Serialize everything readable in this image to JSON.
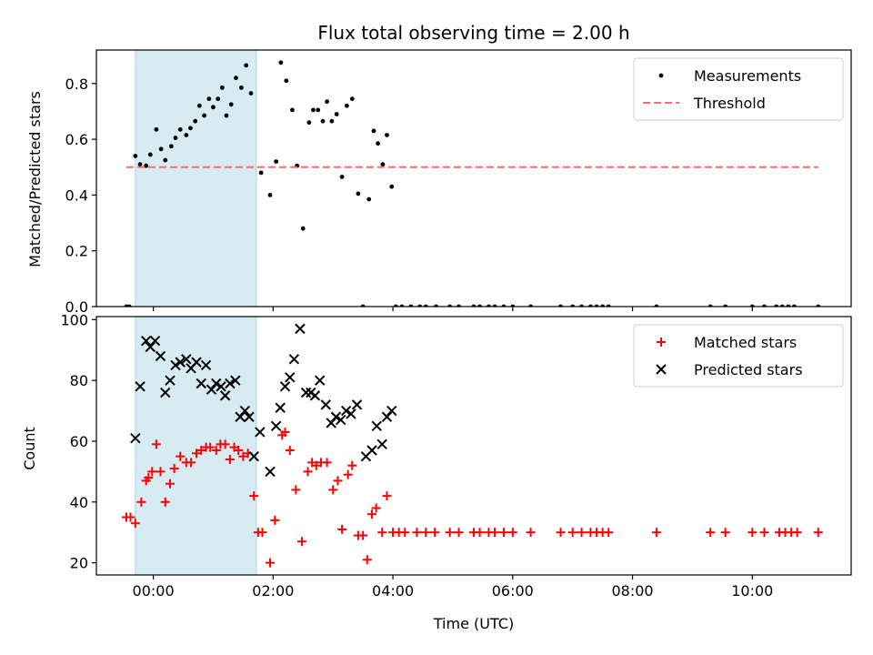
{
  "chart_data": {
    "type": "scatter",
    "title": "Flux total observing time = 2.00 h",
    "xlabel": "Time (UTC)",
    "x_unit": "hours since 00:00 UTC",
    "xlim": [
      -0.95,
      11.65
    ],
    "x_ticks": [
      0,
      2,
      4,
      6,
      8,
      10
    ],
    "x_tick_labels": [
      "00:00",
      "02:00",
      "04:00",
      "06:00",
      "08:00",
      "10:00"
    ],
    "highlight_span": {
      "x_start": -0.3,
      "x_end": 1.72,
      "color": "#add8e6"
    },
    "colors": {
      "measurements": "#000000",
      "threshold": "#ff6b6b",
      "matched": "#ff0000",
      "predicted": "#000000",
      "span": "#add8e6"
    },
    "panels": [
      {
        "ylabel": "Matched/Predicted stars",
        "ylim": [
          0,
          0.92
        ],
        "y_ticks": [
          0.0,
          0.2,
          0.4,
          0.6,
          0.8
        ],
        "y_tick_labels": [
          "0.0",
          "0.2",
          "0.4",
          "0.6",
          "0.8"
        ],
        "legend_position": "top-right",
        "series": [
          {
            "name": "Measurements",
            "kind": "scatter",
            "marker": "dot",
            "points": [
              [
                -0.45,
                0
              ],
              [
                -0.4,
                0
              ],
              [
                -0.3,
                0.54
              ],
              [
                -0.22,
                0.51
              ],
              [
                -0.12,
                0.505
              ],
              [
                -0.05,
                0.545
              ],
              [
                0.05,
                0.635
              ],
              [
                0.13,
                0.565
              ],
              [
                0.2,
                0.525
              ],
              [
                0.3,
                0.575
              ],
              [
                0.37,
                0.605
              ],
              [
                0.45,
                0.635
              ],
              [
                0.55,
                0.615
              ],
              [
                0.62,
                0.64
              ],
              [
                0.7,
                0.665
              ],
              [
                0.77,
                0.72
              ],
              [
                0.85,
                0.685
              ],
              [
                0.93,
                0.745
              ],
              [
                1.0,
                0.715
              ],
              [
                1.08,
                0.745
              ],
              [
                1.15,
                0.785
              ],
              [
                1.22,
                0.685
              ],
              [
                1.3,
                0.725
              ],
              [
                1.38,
                0.82
              ],
              [
                1.47,
                0.785
              ],
              [
                1.55,
                0.865
              ],
              [
                1.63,
                0.765
              ],
              [
                1.8,
                0.48
              ],
              [
                1.95,
                0.4
              ],
              [
                2.05,
                0.52
              ],
              [
                2.13,
                0.875
              ],
              [
                2.22,
                0.81
              ],
              [
                2.32,
                0.705
              ],
              [
                2.4,
                0.505
              ],
              [
                2.5,
                0.28
              ],
              [
                2.6,
                0.66
              ],
              [
                2.67,
                0.705
              ],
              [
                2.75,
                0.705
              ],
              [
                2.83,
                0.665
              ],
              [
                2.9,
                0.735
              ],
              [
                2.98,
                0.665
              ],
              [
                3.06,
                0.69
              ],
              [
                3.15,
                0.465
              ],
              [
                3.23,
                0.72
              ],
              [
                3.32,
                0.745
              ],
              [
                3.42,
                0.405
              ],
              [
                3.5,
                0
              ],
              [
                3.6,
                0.385
              ],
              [
                3.68,
                0.63
              ],
              [
                3.75,
                0.585
              ],
              [
                3.83,
                0.51
              ],
              [
                3.9,
                0.615
              ],
              [
                3.98,
                0.43
              ],
              [
                4.05,
                0
              ],
              [
                4.15,
                0
              ],
              [
                4.3,
                0
              ],
              [
                4.45,
                0
              ],
              [
                4.55,
                0
              ],
              [
                4.72,
                0
              ],
              [
                4.95,
                0
              ],
              [
                5.1,
                0
              ],
              [
                5.35,
                0
              ],
              [
                5.45,
                0
              ],
              [
                5.6,
                0
              ],
              [
                5.7,
                0
              ],
              [
                5.85,
                0
              ],
              [
                6.0,
                0
              ],
              [
                6.3,
                0
              ],
              [
                6.8,
                0
              ],
              [
                7.0,
                0
              ],
              [
                7.15,
                0
              ],
              [
                7.3,
                0
              ],
              [
                7.4,
                0
              ],
              [
                7.5,
                0
              ],
              [
                7.6,
                0
              ],
              [
                8.4,
                0
              ],
              [
                9.3,
                0
              ],
              [
                9.55,
                0
              ],
              [
                10.0,
                0
              ],
              [
                10.2,
                0
              ],
              [
                10.4,
                0
              ],
              [
                10.5,
                0
              ],
              [
                10.6,
                0
              ],
              [
                10.7,
                0
              ],
              [
                11.1,
                0
              ]
            ]
          },
          {
            "name": "Threshold",
            "kind": "line",
            "style": "dashed",
            "x": [
              -0.45,
              11.1
            ],
            "y": [
              0.5,
              0.5
            ]
          }
        ]
      },
      {
        "ylabel": "Count",
        "ylim": [
          16,
          101
        ],
        "y_ticks": [
          20,
          40,
          60,
          80,
          100
        ],
        "y_tick_labels": [
          "20",
          "40",
          "60",
          "80",
          "100"
        ],
        "legend_position": "top-right",
        "series": [
          {
            "name": "Matched stars",
            "kind": "scatter",
            "marker": "plus",
            "points": [
              [
                -0.45,
                35
              ],
              [
                -0.38,
                35
              ],
              [
                -0.3,
                33
              ],
              [
                -0.2,
                40
              ],
              [
                -0.12,
                47
              ],
              [
                -0.08,
                48
              ],
              [
                -0.02,
                50
              ],
              [
                0.05,
                59
              ],
              [
                0.12,
                50
              ],
              [
                0.2,
                40
              ],
              [
                0.28,
                46
              ],
              [
                0.35,
                51
              ],
              [
                0.45,
                55
              ],
              [
                0.55,
                53
              ],
              [
                0.63,
                53
              ],
              [
                0.72,
                56
              ],
              [
                0.8,
                57
              ],
              [
                0.88,
                58
              ],
              [
                0.95,
                58
              ],
              [
                1.05,
                57
              ],
              [
                1.12,
                59
              ],
              [
                1.2,
                59
              ],
              [
                1.28,
                54
              ],
              [
                1.35,
                58
              ],
              [
                1.42,
                57
              ],
              [
                1.5,
                55
              ],
              [
                1.58,
                56
              ],
              [
                1.68,
                42
              ],
              [
                1.75,
                30
              ],
              [
                1.82,
                30
              ],
              [
                1.95,
                20
              ],
              [
                2.03,
                34
              ],
              [
                2.15,
                62
              ],
              [
                2.2,
                63
              ],
              [
                2.28,
                57
              ],
              [
                2.38,
                44
              ],
              [
                2.48,
                27
              ],
              [
                2.58,
                50
              ],
              [
                2.65,
                53
              ],
              [
                2.72,
                52
              ],
              [
                2.8,
                53
              ],
              [
                2.9,
                53
              ],
              [
                3.0,
                44
              ],
              [
                3.08,
                47
              ],
              [
                3.15,
                31
              ],
              [
                3.25,
                49
              ],
              [
                3.32,
                52
              ],
              [
                3.42,
                29
              ],
              [
                3.5,
                29
              ],
              [
                3.57,
                21
              ],
              [
                3.65,
                36
              ],
              [
                3.72,
                38
              ],
              [
                3.82,
                30
              ],
              [
                3.9,
                42
              ],
              [
                4.0,
                30
              ],
              [
                4.1,
                30
              ],
              [
                4.2,
                30
              ],
              [
                4.4,
                30
              ],
              [
                4.55,
                30
              ],
              [
                4.7,
                30
              ],
              [
                4.95,
                30
              ],
              [
                5.1,
                30
              ],
              [
                5.35,
                30
              ],
              [
                5.45,
                30
              ],
              [
                5.6,
                30
              ],
              [
                5.7,
                30
              ],
              [
                5.85,
                30
              ],
              [
                6.0,
                30
              ],
              [
                6.3,
                30
              ],
              [
                6.8,
                30
              ],
              [
                7.0,
                30
              ],
              [
                7.15,
                30
              ],
              [
                7.3,
                30
              ],
              [
                7.4,
                30
              ],
              [
                7.5,
                30
              ],
              [
                7.6,
                30
              ],
              [
                8.4,
                30
              ],
              [
                9.3,
                30
              ],
              [
                9.55,
                30
              ],
              [
                10.0,
                30
              ],
              [
                10.2,
                30
              ],
              [
                10.45,
                30
              ],
              [
                10.55,
                30
              ],
              [
                10.65,
                30
              ],
              [
                10.75,
                30
              ],
              [
                11.1,
                30
              ]
            ]
          },
          {
            "name": "Predicted stars",
            "kind": "scatter",
            "marker": "x",
            "points": [
              [
                -0.3,
                61
              ],
              [
                -0.22,
                78
              ],
              [
                -0.12,
                93
              ],
              [
                -0.05,
                91
              ],
              [
                0.03,
                93
              ],
              [
                0.12,
                88
              ],
              [
                0.2,
                76
              ],
              [
                0.28,
                80
              ],
              [
                0.37,
                85
              ],
              [
                0.45,
                86
              ],
              [
                0.55,
                87
              ],
              [
                0.63,
                84
              ],
              [
                0.72,
                86
              ],
              [
                0.8,
                79
              ],
              [
                0.88,
                85
              ],
              [
                0.97,
                77
              ],
              [
                1.05,
                79
              ],
              [
                1.13,
                78
              ],
              [
                1.2,
                75
              ],
              [
                1.28,
                79
              ],
              [
                1.37,
                80
              ],
              [
                1.45,
                68
              ],
              [
                1.53,
                70
              ],
              [
                1.6,
                68
              ],
              [
                1.68,
                55
              ],
              [
                1.78,
                63
              ],
              [
                1.95,
                50
              ],
              [
                2.05,
                65
              ],
              [
                2.12,
                71
              ],
              [
                2.2,
                78
              ],
              [
                2.28,
                81
              ],
              [
                2.35,
                87
              ],
              [
                2.45,
                97
              ],
              [
                2.55,
                76
              ],
              [
                2.63,
                76
              ],
              [
                2.7,
                75
              ],
              [
                2.78,
                80
              ],
              [
                2.88,
                72
              ],
              [
                2.97,
                66
              ],
              [
                3.05,
                68
              ],
              [
                3.13,
                67
              ],
              [
                3.22,
                70
              ],
              [
                3.3,
                69
              ],
              [
                3.4,
                72
              ],
              [
                3.55,
                55
              ],
              [
                3.65,
                57
              ],
              [
                3.73,
                65
              ],
              [
                3.82,
                59
              ],
              [
                3.9,
                68
              ],
              [
                3.98,
                70
              ]
            ]
          }
        ]
      }
    ]
  }
}
